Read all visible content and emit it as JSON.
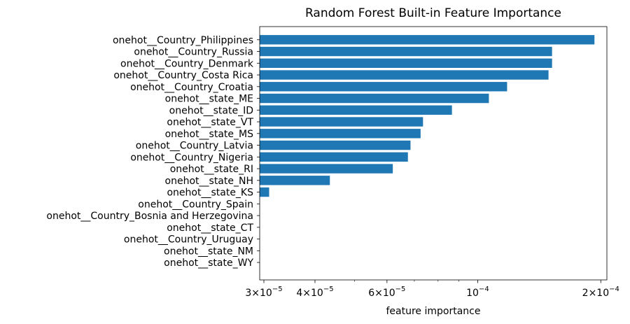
{
  "chart_data": {
    "type": "bar",
    "orientation": "horizontal",
    "title": "Random Forest Built-in Feature Importance",
    "xlabel": "feature importance",
    "ylabel": "",
    "x_scale": "log",
    "xlim": [
      2.93e-05,
      0.000207
    ],
    "grid": false,
    "color": "#1f77b4",
    "categories": [
      "onehot__Country_Philippines",
      "onehot__Country_Russia",
      "onehot__Country_Denmark",
      "onehot__Country_Costa Rica",
      "onehot__Country_Croatia",
      "onehot__state_ME",
      "onehot__state_ID",
      "onehot__state_VT",
      "onehot__state_MS",
      "onehot__Country_Latvia",
      "onehot__Country_Nigeria",
      "onehot__state_RI",
      "onehot__state_NH",
      "onehot__state_KS",
      "onehot__Country_Spain",
      "onehot__Country_Bosnia and Herzegovina",
      "onehot__state_CT",
      "onehot__Country_Uruguay",
      "onehot__state_NM",
      "onehot__state_WY"
    ],
    "values": [
      0.000193,
      0.000152,
      0.000152,
      0.000149,
      0.000118,
      0.0001065,
      8.65e-05,
      7.35e-05,
      7.25e-05,
      6.85e-05,
      6.75e-05,
      6.2e-05,
      4.35e-05,
      3.09e-05,
      0,
      0,
      0,
      0,
      0,
      0
    ],
    "ticks": [
      {
        "value": 3e-05,
        "mantissa": "3",
        "base": "10",
        "exp": "−5"
      },
      {
        "value": 4e-05,
        "mantissa": "4",
        "base": "10",
        "exp": "−5"
      },
      {
        "value": 6e-05,
        "mantissa": "6",
        "base": "10",
        "exp": "−5"
      },
      {
        "value": 0.0001,
        "mantissa": "",
        "base": "10",
        "exp": "−4"
      },
      {
        "value": 0.0002,
        "mantissa": "2",
        "base": "10",
        "exp": "−4"
      }
    ],
    "minor_ticks": [
      5e-05,
      7e-05,
      8e-05,
      9e-05
    ]
  }
}
